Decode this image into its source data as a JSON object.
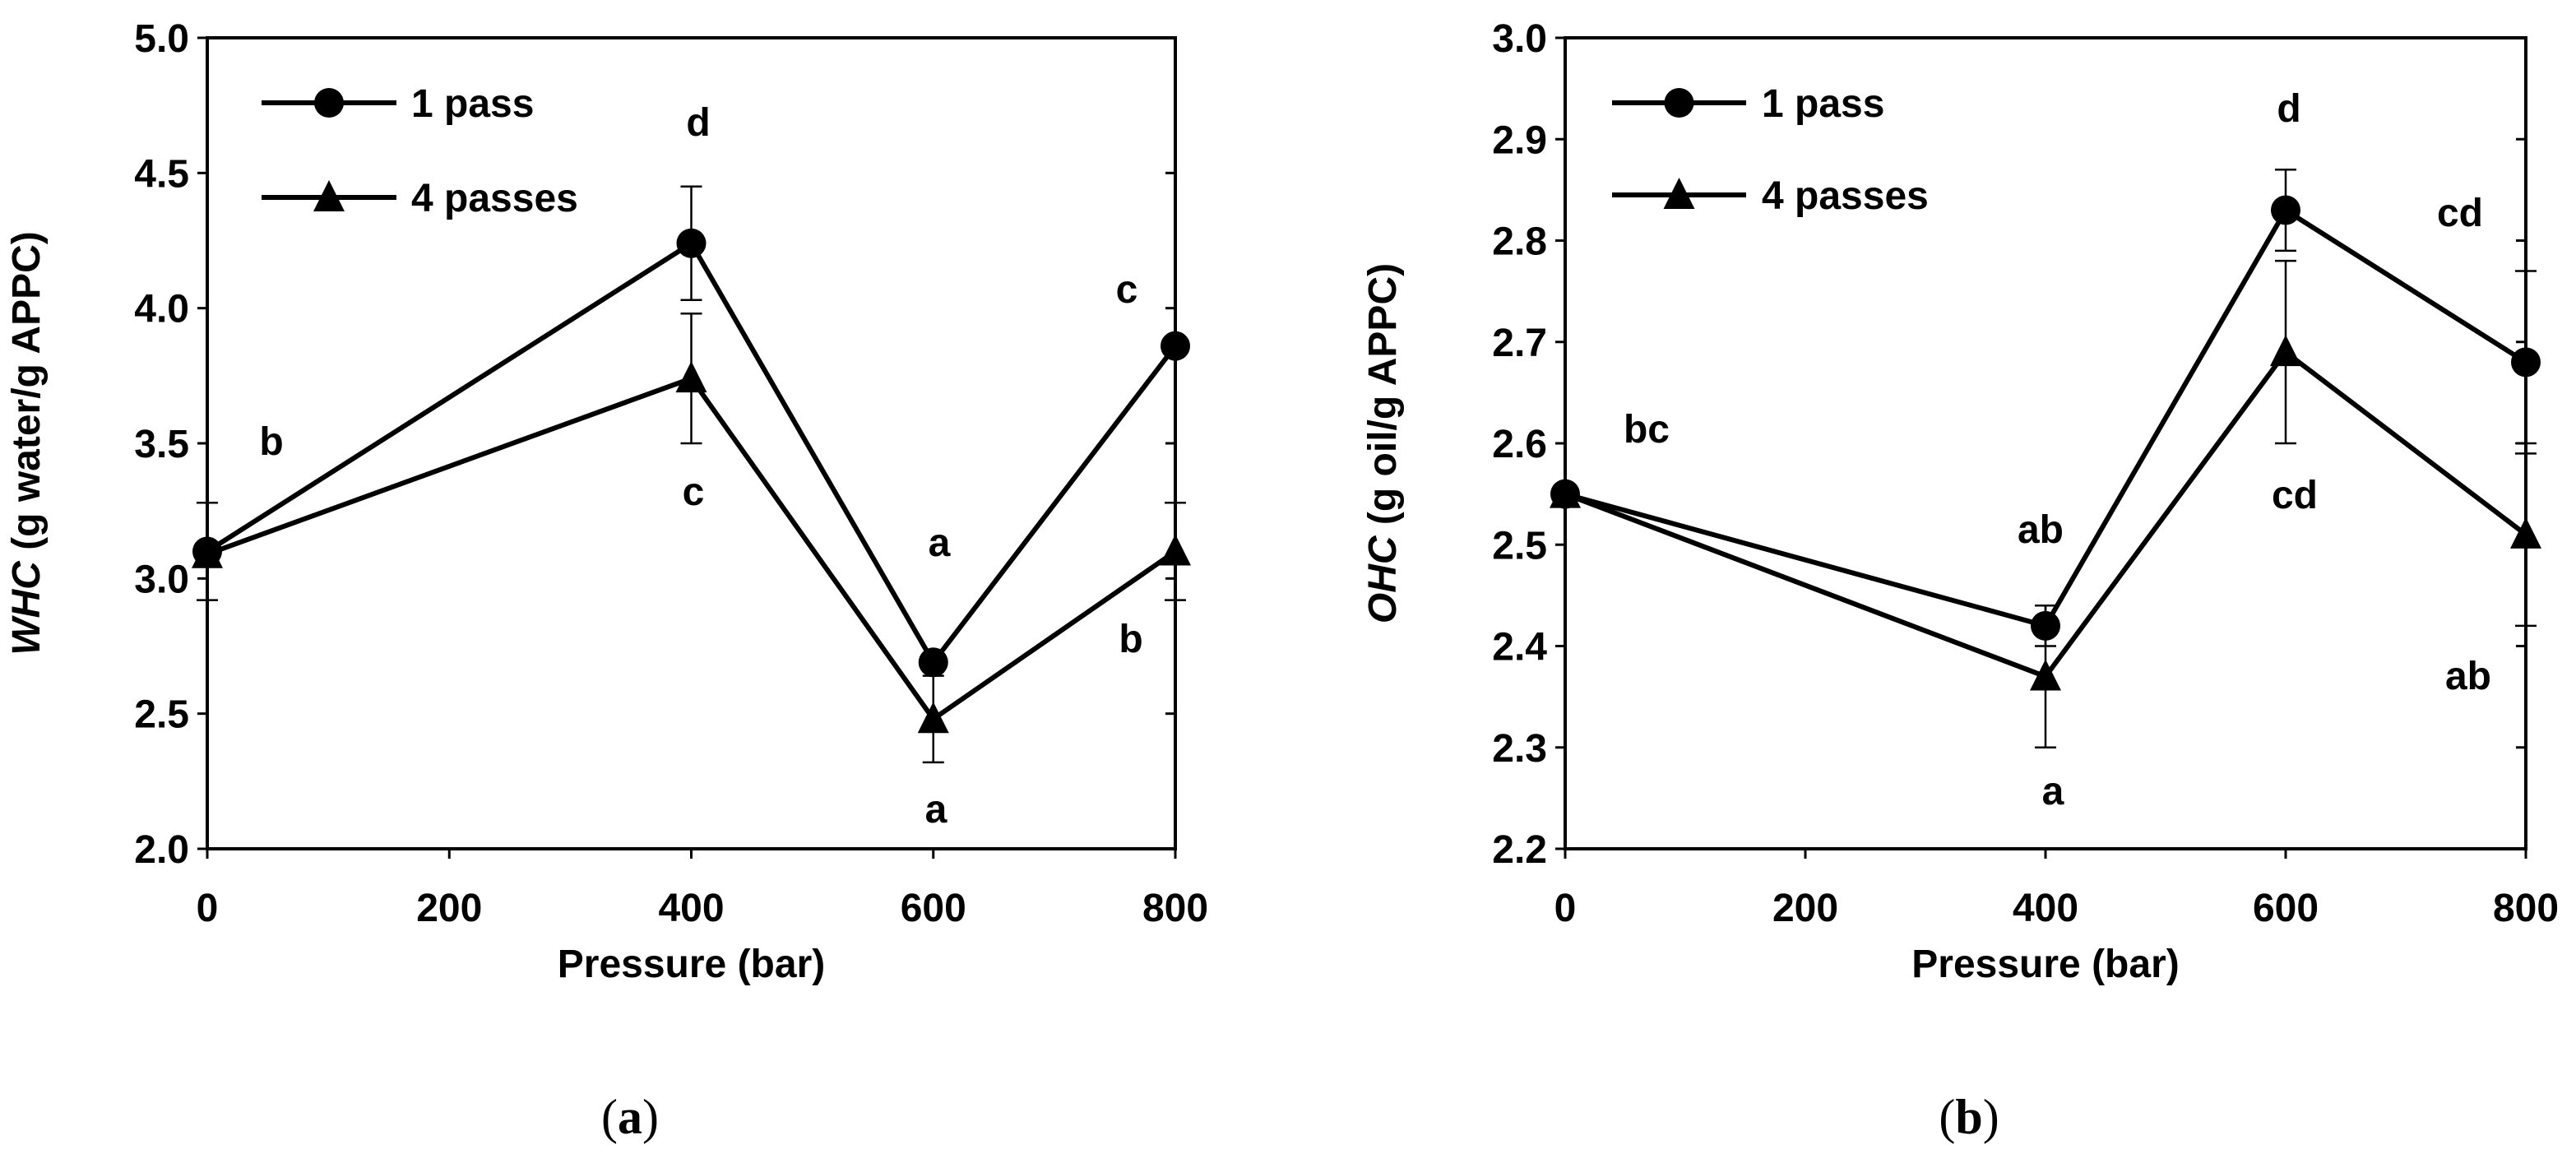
{
  "colors": {
    "line": "#000000",
    "background": "#ffffff"
  },
  "chart_data": [
    {
      "id": "a",
      "type": "line",
      "panel_label": "a",
      "xlabel": "Pressure (bar)",
      "ylabel_italic": "WHC",
      "ylabel_rest": " (g water/g APPC)",
      "xlim": [
        0,
        800
      ],
      "ylim": [
        2.0,
        5.0
      ],
      "xticks": [
        "0",
        "200",
        "400",
        "600",
        "800"
      ],
      "yticks": [
        "2.0",
        "2.5",
        "3.0",
        "3.5",
        "4.0",
        "4.5",
        "5.0"
      ],
      "grid": false,
      "legend": "top-left",
      "x": [
        0,
        400,
        600,
        800
      ],
      "series": [
        {
          "name": "1 pass",
          "marker": "circle",
          "values": [
            3.1,
            4.24,
            2.69,
            3.86
          ],
          "errors": [
            0.18,
            0.21,
            0.03,
            0.0
          ],
          "letters": [
            "b",
            "d",
            "a",
            "c"
          ]
        },
        {
          "name": "4 passes",
          "marker": "triangle",
          "values": [
            3.09,
            3.74,
            2.48,
            3.1
          ],
          "errors": [
            0.0,
            0.24,
            0.16,
            0.18
          ],
          "letters": [
            "",
            "c",
            "a",
            "b"
          ]
        }
      ]
    },
    {
      "id": "b",
      "type": "line",
      "panel_label": "b",
      "xlabel": "Pressure (bar)",
      "ylabel_italic": "OHC",
      "ylabel_rest": " (g oil/g APPC)",
      "xlim": [
        0,
        800
      ],
      "ylim": [
        2.2,
        3.0
      ],
      "xticks": [
        "0",
        "200",
        "400",
        "600",
        "800"
      ],
      "yticks": [
        "2.2",
        "2.3",
        "2.4",
        "2.5",
        "2.6",
        "2.7",
        "2.8",
        "2.9",
        "3.0"
      ],
      "grid": false,
      "legend": "top-left",
      "x": [
        0,
        400,
        600,
        800
      ],
      "series": [
        {
          "name": "1 pass",
          "marker": "circle",
          "values": [
            2.55,
            2.42,
            2.83,
            2.68
          ],
          "errors": [
            0.0,
            0.02,
            0.04,
            0.09
          ],
          "letters": [
            "bc",
            "ab",
            "d",
            "cd"
          ]
        },
        {
          "name": "4 passes",
          "marker": "triangle",
          "values": [
            2.55,
            2.37,
            2.69,
            2.51
          ],
          "errors": [
            0.0,
            0.07,
            0.09,
            0.09
          ],
          "letters": [
            "",
            "a",
            "cd",
            "ab"
          ]
        }
      ]
    }
  ]
}
